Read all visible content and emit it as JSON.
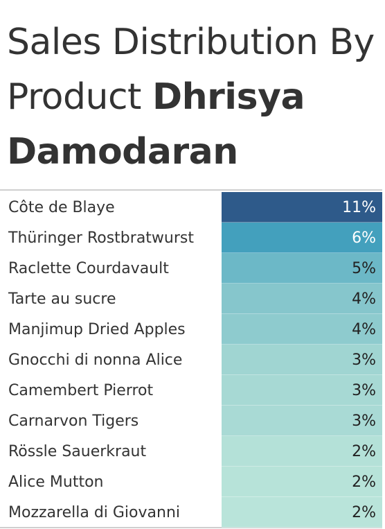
{
  "title": {
    "part1": "Sales Distribution By Product ",
    "part2": "Dhrisya Damodaran"
  },
  "chart_data": {
    "type": "table",
    "value_unit": "%",
    "categories": [
      "Côte de Blaye",
      "Thüringer Rostbratwurst",
      "Raclette Courdavault",
      "Tarte au sucre",
      "Manjimup Dried Apples",
      "Gnocchi di nonna Alice",
      "Camembert Pierrot",
      "Carnarvon Tigers",
      "Rössle Sauerkraut",
      "Alice Mutton",
      "Mozzarella di Giovanni"
    ],
    "values": [
      11,
      6,
      5,
      4,
      4,
      3,
      3,
      3,
      2,
      2,
      2
    ],
    "labels": [
      "11%",
      "6%",
      "5%",
      "4%",
      "4%",
      "3%",
      "3%",
      "3%",
      "2%",
      "2%",
      "2%"
    ],
    "cell_colors": [
      "#2e5a8a",
      "#43a0bd",
      "#6cb8c7",
      "#86c6cc",
      "#8ecbce",
      "#a0d5d2",
      "#a7d9d4",
      "#a9dad5",
      "#b4e1d8",
      "#b7e3d9",
      "#b9e4da"
    ],
    "text_colors": [
      "#ffffff",
      "#ffffff",
      "#222222",
      "#222222",
      "#222222",
      "#222222",
      "#222222",
      "#222222",
      "#222222",
      "#222222",
      "#222222"
    ]
  }
}
